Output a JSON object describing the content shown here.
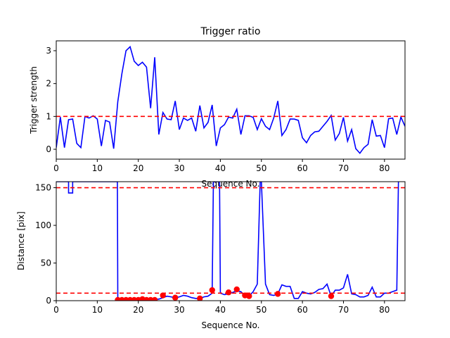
{
  "chart_data": [
    {
      "type": "line",
      "title": "Trigger ratio",
      "xlabel": "Sequence No.",
      "ylabel": "Trigger strength",
      "xlim": [
        0,
        85
      ],
      "ylim": [
        -0.3,
        3.3
      ],
      "xticks": [
        0,
        10,
        20,
        30,
        40,
        50,
        60,
        70,
        80
      ],
      "yticks": [
        0,
        1,
        2,
        3
      ],
      "grid": false,
      "series": [
        {
          "color": "#0000ff",
          "x": [
            0,
            1,
            2,
            3,
            4,
            5,
            6,
            7,
            8,
            9,
            10,
            11,
            12,
            13,
            14,
            15,
            16,
            17,
            18,
            19,
            20,
            21,
            22,
            23,
            24,
            25,
            26,
            27,
            28,
            29,
            30,
            31,
            32,
            33,
            34,
            35,
            36,
            37,
            38,
            39,
            40,
            41,
            42,
            43,
            44,
            45,
            46,
            47,
            48,
            49,
            50,
            51,
            52,
            53,
            54,
            55,
            56,
            57,
            58,
            59,
            60,
            61,
            62,
            63,
            64,
            65,
            66,
            67,
            68,
            69,
            70,
            71,
            72,
            73,
            74,
            75,
            76,
            77,
            78,
            79,
            80,
            81,
            82,
            83,
            84,
            85
          ],
          "y": [
            0.05,
            0.98,
            0.05,
            0.9,
            0.92,
            0.18,
            0.05,
            1.0,
            0.95,
            1.02,
            0.92,
            0.1,
            0.88,
            0.83,
            0.02,
            1.45,
            2.3,
            3.0,
            3.12,
            2.68,
            2.55,
            2.65,
            2.5,
            1.25,
            2.8,
            0.45,
            1.12,
            0.92,
            0.9,
            1.47,
            0.6,
            0.95,
            0.88,
            0.95,
            0.55,
            1.33,
            0.65,
            0.82,
            1.35,
            0.1,
            0.65,
            0.75,
            0.98,
            0.95,
            1.22,
            0.45,
            1.02,
            1.02,
            0.97,
            0.6,
            0.93,
            0.7,
            0.6,
            0.95,
            1.47,
            0.42,
            0.6,
            0.92,
            0.92,
            0.88,
            0.35,
            0.2,
            0.42,
            0.53,
            0.55,
            0.7,
            0.85,
            1.03,
            0.28,
            0.48,
            0.97,
            0.25,
            0.6,
            0.02,
            -0.12,
            0.05,
            0.15,
            0.9,
            0.4,
            0.42,
            0.05,
            0.93,
            0.95,
            0.45,
            0.98,
            0.7
          ]
        }
      ],
      "hlines": [
        {
          "y": 1.0,
          "color": "#ff0000",
          "style": "dashed"
        }
      ]
    },
    {
      "type": "line",
      "title": "",
      "xlabel": "Sequence No.",
      "ylabel": "Distance [pix]",
      "xlim": [
        0,
        85
      ],
      "ylim": [
        0,
        158
      ],
      "xticks": [
        0,
        10,
        20,
        30,
        40,
        50,
        60,
        70,
        80
      ],
      "yticks": [
        0,
        50,
        100,
        150
      ],
      "grid": false,
      "series": [
        {
          "color": "#0000ff",
          "x": [
            0,
            1,
            2,
            3,
            3,
            4,
            4,
            5,
            14.9,
            15,
            16,
            17,
            18,
            19,
            20,
            21,
            22,
            23,
            24,
            25,
            26,
            27,
            28,
            29,
            30,
            31,
            32,
            33,
            34,
            35,
            36,
            37,
            38,
            38.3,
            39,
            39.8,
            40,
            41,
            42,
            43,
            44,
            45,
            46,
            47,
            48,
            49,
            49.7,
            50,
            51,
            52,
            53,
            54,
            55,
            56,
            57,
            58,
            59,
            60,
            61,
            62,
            63,
            64,
            65,
            66,
            67,
            68,
            69,
            70,
            71,
            72,
            73,
            74,
            75,
            76,
            77,
            78,
            79,
            80,
            81,
            82,
            83,
            83.4
          ],
          "y": [
            158,
            158,
            158,
            158,
            143,
            143,
            158,
            158,
            158,
            2,
            1,
            1,
            1,
            1,
            2,
            1,
            2,
            1,
            2,
            2,
            4,
            6,
            5,
            4,
            5,
            7,
            6,
            4,
            3,
            3,
            5,
            6,
            10,
            158,
            158,
            158,
            10,
            8,
            9,
            11,
            13,
            12,
            6,
            6,
            12,
            22,
            158,
            158,
            22,
            8,
            7,
            9,
            21,
            19,
            19,
            3,
            3,
            12,
            10,
            9,
            11,
            15,
            16,
            22,
            6,
            14,
            14,
            17,
            35,
            9,
            8,
            5,
            5,
            7,
            18,
            5,
            5,
            10,
            10,
            12,
            14,
            158
          ]
        }
      ],
      "markers": {
        "color": "#ff0000",
        "x": [
          15,
          16,
          17,
          18,
          19,
          20,
          21,
          22,
          23,
          24,
          26,
          29,
          35,
          38,
          42,
          44,
          46,
          47,
          54,
          67
        ],
        "y": [
          1,
          1,
          1,
          1,
          1,
          1,
          2,
          1,
          1,
          1,
          7,
          4,
          3,
          14,
          11,
          15,
          7,
          6,
          9,
          6
        ]
      },
      "hlines": [
        {
          "y": 150,
          "color": "#ff0000",
          "style": "dashed"
        },
        {
          "y": 10,
          "color": "#ff0000",
          "style": "dashed"
        }
      ]
    }
  ]
}
